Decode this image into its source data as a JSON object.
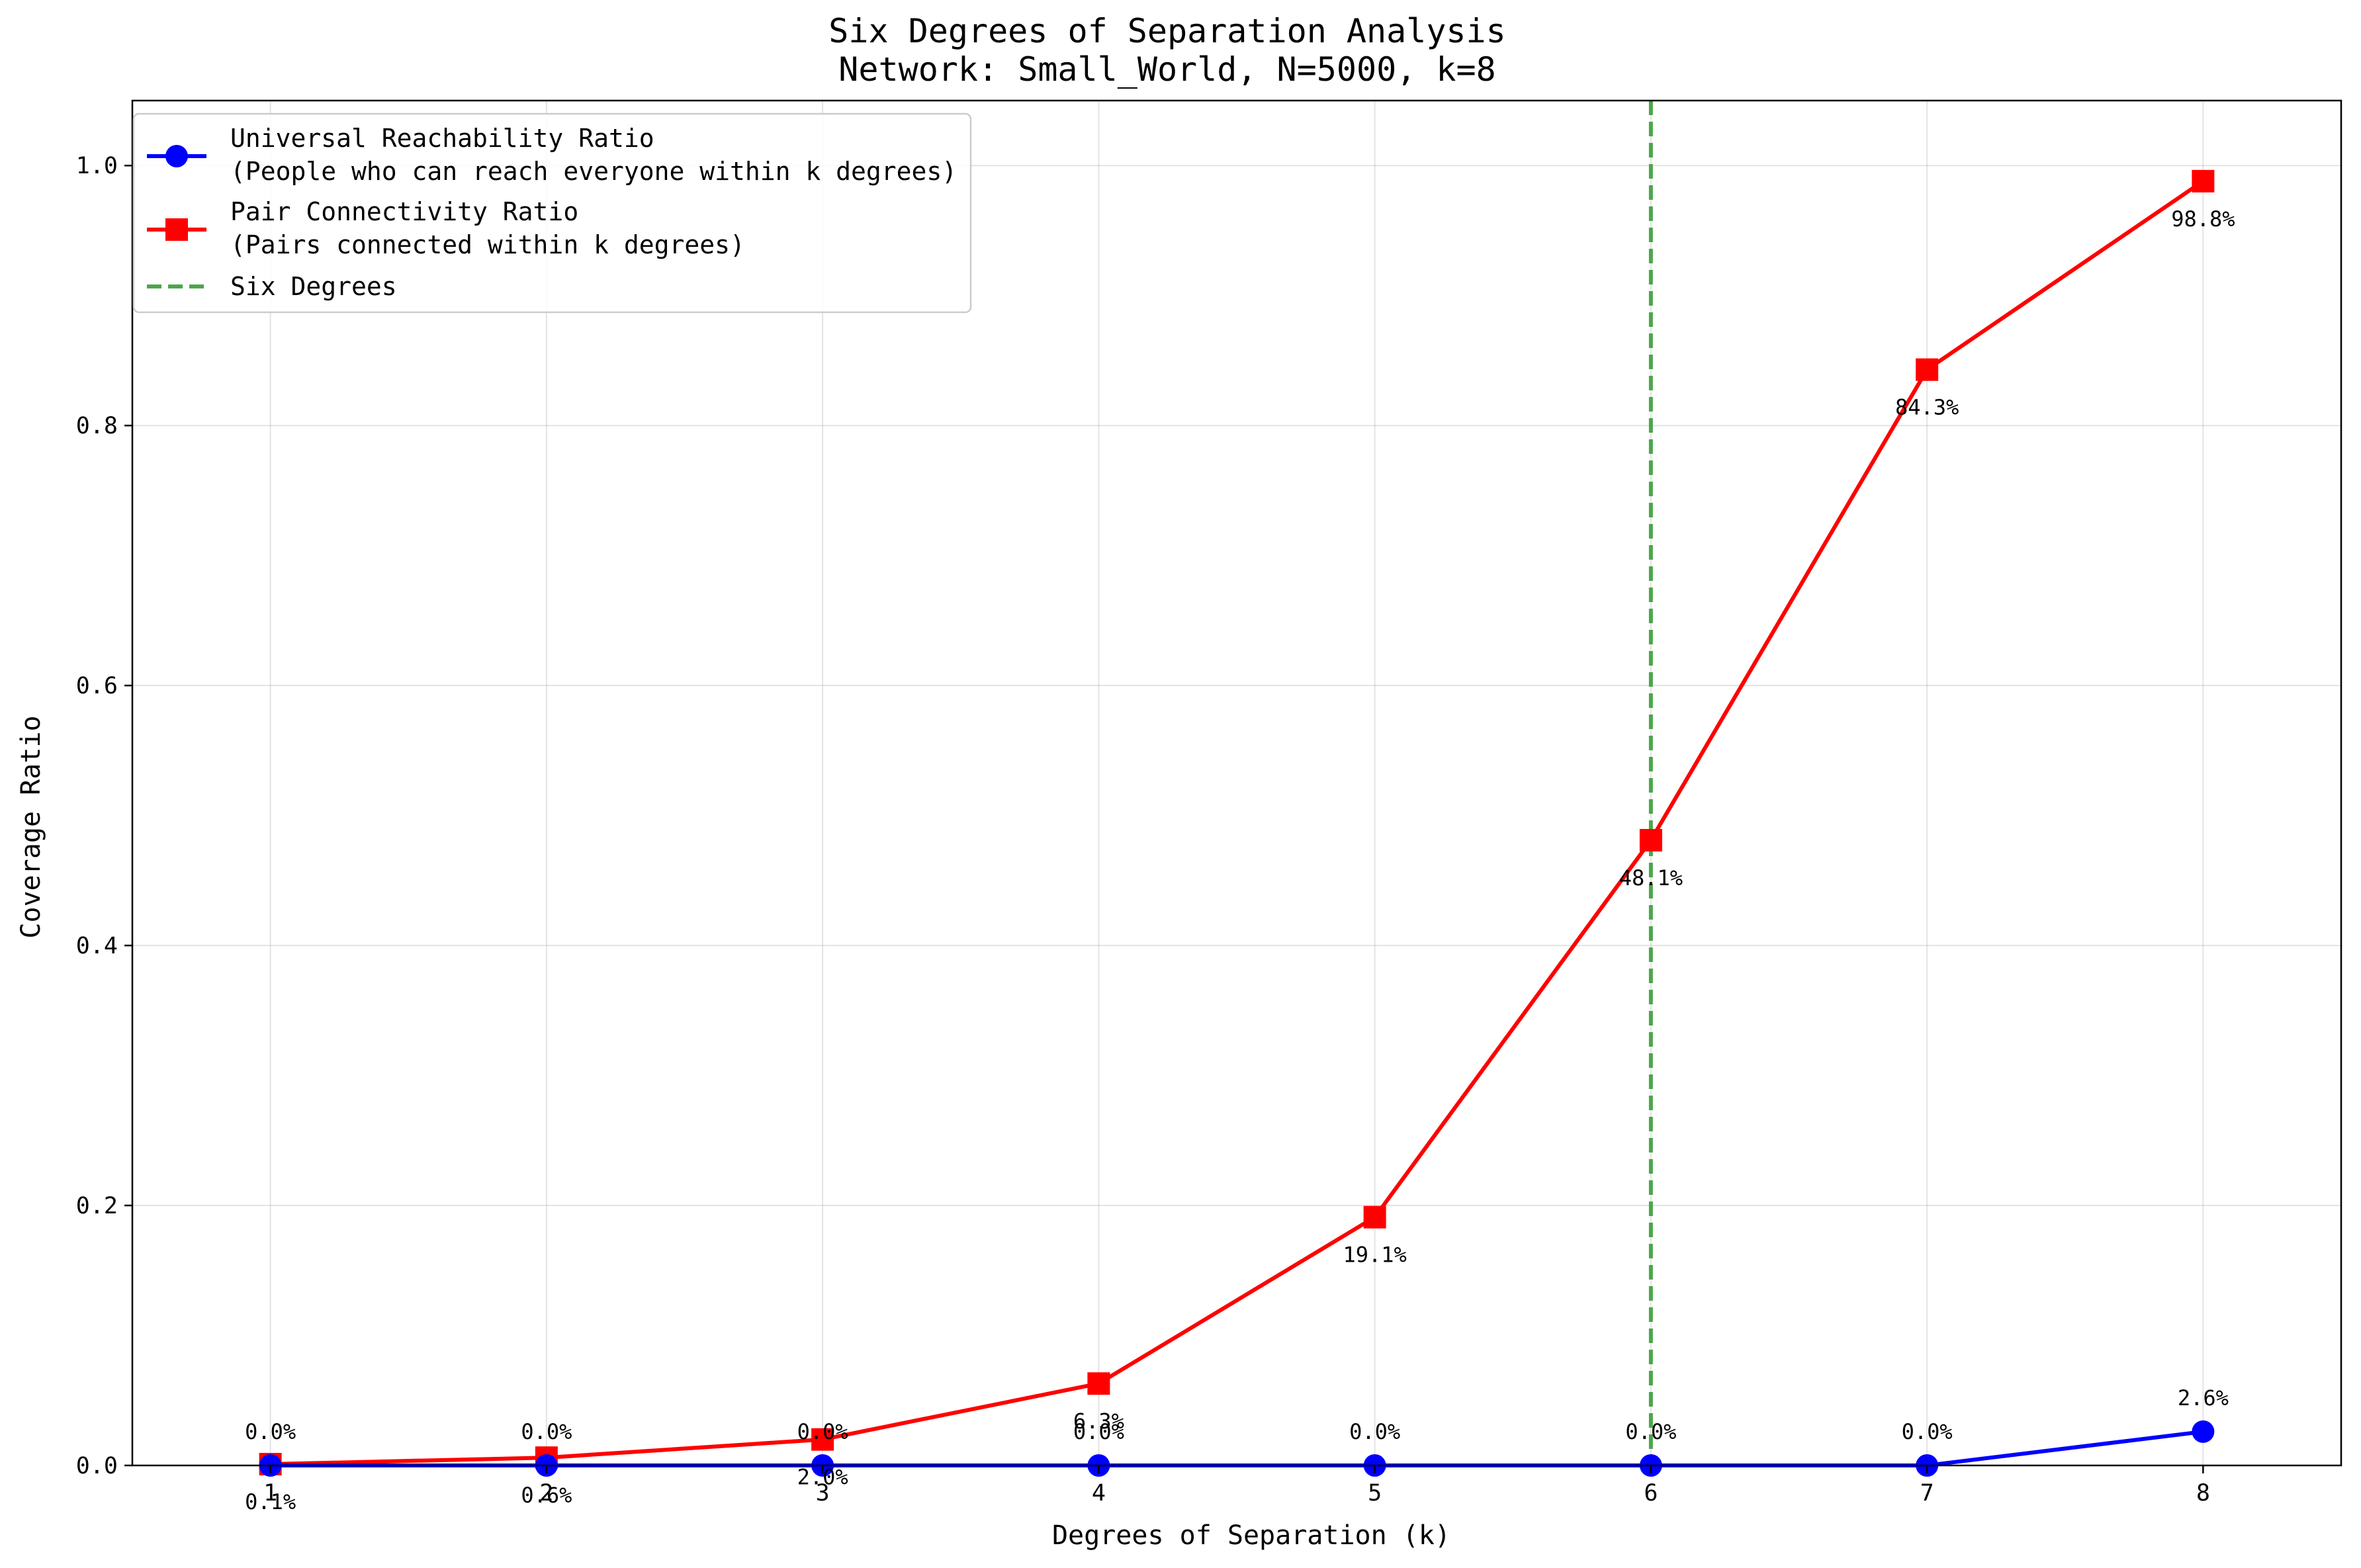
{
  "chart_data": {
    "type": "line",
    "title": "Six Degrees of Separation Analysis",
    "subtitle": "Network: Small_World, N=5000, k=8",
    "xlabel": "Degrees of Separation (k)",
    "ylabel": "Coverage Ratio",
    "x": [
      1,
      2,
      3,
      4,
      5,
      6,
      7,
      8
    ],
    "x_tick_labels": [
      "1",
      "2",
      "3",
      "4",
      "5",
      "6",
      "7",
      "8"
    ],
    "y_tick_labels": [
      "0.0",
      "0.2",
      "0.4",
      "0.6",
      "0.8",
      "1.0"
    ],
    "y_ticks": [
      0,
      0.2,
      0.4,
      0.6,
      0.8,
      1.0
    ],
    "xlim": [
      0.5,
      8.5
    ],
    "ylim": [
      0,
      1.05
    ],
    "grid": true,
    "legend_position": "top-left",
    "series": [
      {
        "name": "Universal Reachability Ratio",
        "name_line2": "(People who can reach everyone within k degrees)",
        "color": "#0000ff",
        "marker": "circle",
        "values": [
          0.0,
          0.0,
          0.0,
          0.0,
          0.0,
          0.0,
          0.0,
          0.026
        ],
        "labels": [
          "0.0%",
          "0.0%",
          "0.0%",
          "0.0%",
          "0.0%",
          "0.0%",
          "0.0%",
          "2.6%"
        ]
      },
      {
        "name": "Pair Connectivity Ratio",
        "name_line2": "(Pairs connected within k degrees)",
        "color": "#ff0000",
        "marker": "square",
        "values": [
          0.001,
          0.006,
          0.02,
          0.063,
          0.191,
          0.481,
          0.843,
          0.988
        ],
        "labels": [
          "0.1%",
          "0.6%",
          "2.0%",
          "6.3%",
          "19.1%",
          "48.1%",
          "84.3%",
          "98.8%"
        ]
      }
    ],
    "reference_line": {
      "name": "Six Degrees",
      "x": 6,
      "color": "#4ca64c",
      "style": "dashed"
    }
  }
}
